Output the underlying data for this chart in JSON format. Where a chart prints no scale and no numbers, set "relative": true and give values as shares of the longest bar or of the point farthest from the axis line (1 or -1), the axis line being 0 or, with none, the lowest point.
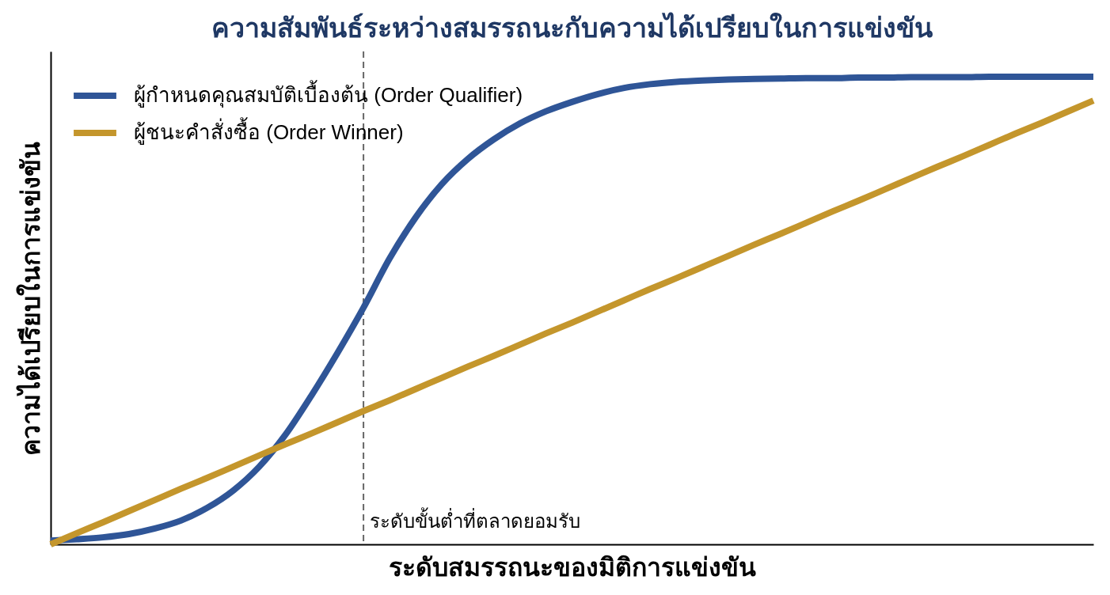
{
  "chart_data": {
    "type": "line",
    "title": "ความสัมพันธ์ระหว่างสมรรถนะกับความได้เปรียบในการแข่งขัน",
    "xlabel": "ระดับสมรรถนะของมิติการแข่งขัน",
    "ylabel": "ความได้เปรียบในการแข่งขัน",
    "relative": true,
    "legend": "top left",
    "line_style": "solid",
    "categories": [
      null,
      null,
      null,
      null,
      null,
      null,
      null,
      null,
      null,
      null,
      null,
      null,
      null,
      null,
      null,
      null,
      null,
      null,
      null,
      null,
      null,
      null,
      null,
      null,
      null,
      null,
      null,
      null,
      null,
      null,
      null,
      null,
      null,
      null,
      null,
      null,
      null,
      null,
      null,
      null,
      null
    ],
    "series": [
      {
        "name": "ผู้กำหนดคุณสมบัติเบื้องต้น (Order Qualifier)",
        "color": "#2f5597",
        "values": [
          0.008,
          0.011,
          0.015,
          0.022,
          0.034,
          0.051,
          0.078,
          0.115,
          0.166,
          0.234,
          0.318,
          0.409,
          0.506,
          0.611,
          0.699,
          0.77,
          0.824,
          0.866,
          0.9,
          0.926,
          0.946,
          0.963,
          0.976,
          0.984,
          0.989,
          0.992,
          0.994,
          0.995,
          0.996,
          0.997,
          0.997,
          0.998,
          0.998,
          0.999,
          0.999,
          0.999,
          1,
          1,
          1,
          1,
          1
        ]
      },
      {
        "name": "ผู้ชนะคำสั่งซื้อ (Order Winner)",
        "color": "#c4962c",
        "values": [
          0,
          0.024,
          0.047,
          0.071,
          0.095,
          0.119,
          0.142,
          0.166,
          0.19,
          0.214,
          0.237,
          0.261,
          0.285,
          0.308,
          0.332,
          0.356,
          0.38,
          0.403,
          0.427,
          0.451,
          0.474,
          0.498,
          0.522,
          0.546,
          0.569,
          0.593,
          0.617,
          0.641,
          0.664,
          0.688,
          0.712,
          0.735,
          0.759,
          0.783,
          0.807,
          0.83,
          0.854,
          0.878,
          0.901,
          0.925,
          0.949
        ]
      }
    ],
    "annotations": [
      "ระดับขั้นต่ำที่ตลาดยอมรับ"
    ]
  }
}
